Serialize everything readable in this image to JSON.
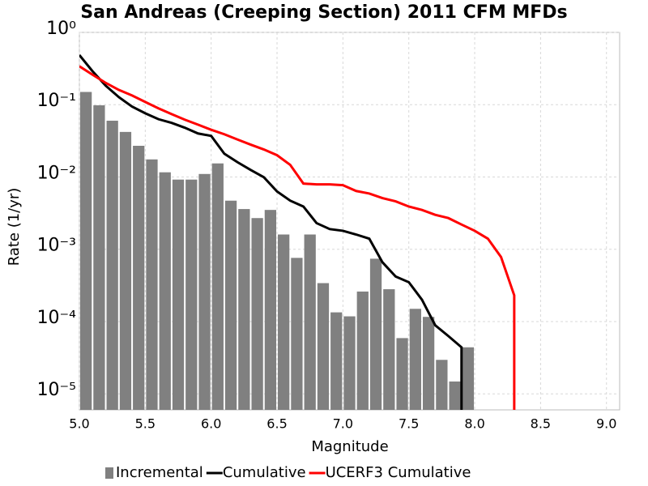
{
  "chart_data": {
    "type": "line",
    "title": "San Andreas (Creeping Section) 2011 CFM MFDs",
    "x_label": "Magnitude",
    "y_label": "Rate (1/yr)",
    "ylog": true,
    "grid": true,
    "legend": "bottom",
    "xlim": [
      5.0,
      9.1
    ],
    "ylim": [
      6e-06,
      1
    ],
    "xticks": [
      {
        "value": 5,
        "label": "5.0"
      },
      5.5,
      {
        "value": 6,
        "label": "6.0"
      },
      6.5,
      {
        "value": 7,
        "label": "7.0"
      },
      7.5,
      {
        "value": 8,
        "label": "8.0"
      },
      8.5,
      {
        "value": 9,
        "label": "9.0"
      }
    ],
    "yticks": [
      {
        "value": 1,
        "label": "10⁰"
      },
      {
        "value": 0.1,
        "label": "10⁻¹"
      },
      {
        "value": 0.01,
        "label": "10⁻²"
      },
      {
        "value": 0.001,
        "label": "10⁻³"
      },
      {
        "value": 0.0001,
        "label": "10⁻⁴"
      },
      {
        "value": 1e-05,
        "label": "10⁻⁵"
      }
    ],
    "series": [
      {
        "name": "Incremental",
        "type": "bar",
        "color": "#808080",
        "bins": [
          5.0,
          5.1,
          5.2,
          5.3,
          5.4,
          5.5,
          5.6,
          5.7,
          5.8,
          5.9,
          6.0,
          6.1,
          6.2,
          6.3,
          6.4,
          6.5,
          6.6,
          6.7,
          6.8,
          6.9,
          7.0,
          7.1,
          7.2,
          7.3,
          7.4,
          7.5,
          7.6,
          7.7,
          7.8,
          7.9,
          8.0
        ],
        "values": [
          0.15,
          0.098,
          0.06,
          0.042,
          0.027,
          0.0175,
          0.0116,
          0.0092,
          0.0092,
          0.011,
          0.0154,
          0.0047,
          0.0036,
          0.0027,
          0.0035,
          0.0016,
          0.00076,
          0.0016,
          0.00034,
          0.000134,
          0.000118,
          0.00026,
          0.00074,
          0.00028,
          5.9e-05,
          0.00015,
          0.000116,
          2.95e-05,
          1.48e-05,
          4.4e-05
        ]
      },
      {
        "name": "Cumulative",
        "type": "line",
        "color": "#000000",
        "x": [
          5.0,
          5.1,
          5.2,
          5.3,
          5.4,
          5.5,
          5.6,
          5.7,
          5.8,
          5.9,
          6.0,
          6.1,
          6.2,
          6.3,
          6.4,
          6.5,
          6.6,
          6.7,
          6.8,
          6.9,
          7.0,
          7.1,
          7.2,
          7.3,
          7.4,
          7.5,
          7.6,
          7.7,
          7.8,
          7.9,
          7.9
        ],
        "values": [
          0.486,
          0.29,
          0.183,
          0.127,
          0.094,
          0.076,
          0.063,
          0.056,
          0.048,
          0.04,
          0.037,
          0.021,
          0.016,
          0.0125,
          0.0099,
          0.0063,
          0.0047,
          0.0039,
          0.0023,
          0.0019,
          0.0018,
          0.0016,
          0.0014,
          0.00066,
          0.00042,
          0.00035,
          0.0002,
          8.9e-05,
          6.3e-05,
          4.4e-05,
          1e-06
        ]
      },
      {
        "name": "UCERF3 Cumulative",
        "type": "line",
        "color": "#ff0000",
        "x": [
          5.0,
          5.1,
          5.2,
          5.3,
          5.4,
          5.5,
          5.6,
          5.7,
          5.8,
          5.9,
          6.0,
          6.1,
          6.2,
          6.3,
          6.4,
          6.5,
          6.6,
          6.7,
          6.8,
          6.9,
          7.0,
          7.1,
          7.2,
          7.3,
          7.4,
          7.5,
          7.6,
          7.7,
          7.8,
          7.9,
          8.0,
          8.1,
          8.2,
          8.3,
          8.3
        ],
        "values": [
          0.34,
          0.26,
          0.2,
          0.16,
          0.134,
          0.109,
          0.089,
          0.074,
          0.062,
          0.053,
          0.045,
          0.039,
          0.033,
          0.028,
          0.024,
          0.02,
          0.0147,
          0.0081,
          0.0079,
          0.0079,
          0.0077,
          0.0064,
          0.0059,
          0.0051,
          0.0046,
          0.0039,
          0.0035,
          0.003,
          0.0027,
          0.0022,
          0.0018,
          0.0014,
          0.00078,
          0.00023,
          1e-06
        ]
      }
    ]
  }
}
